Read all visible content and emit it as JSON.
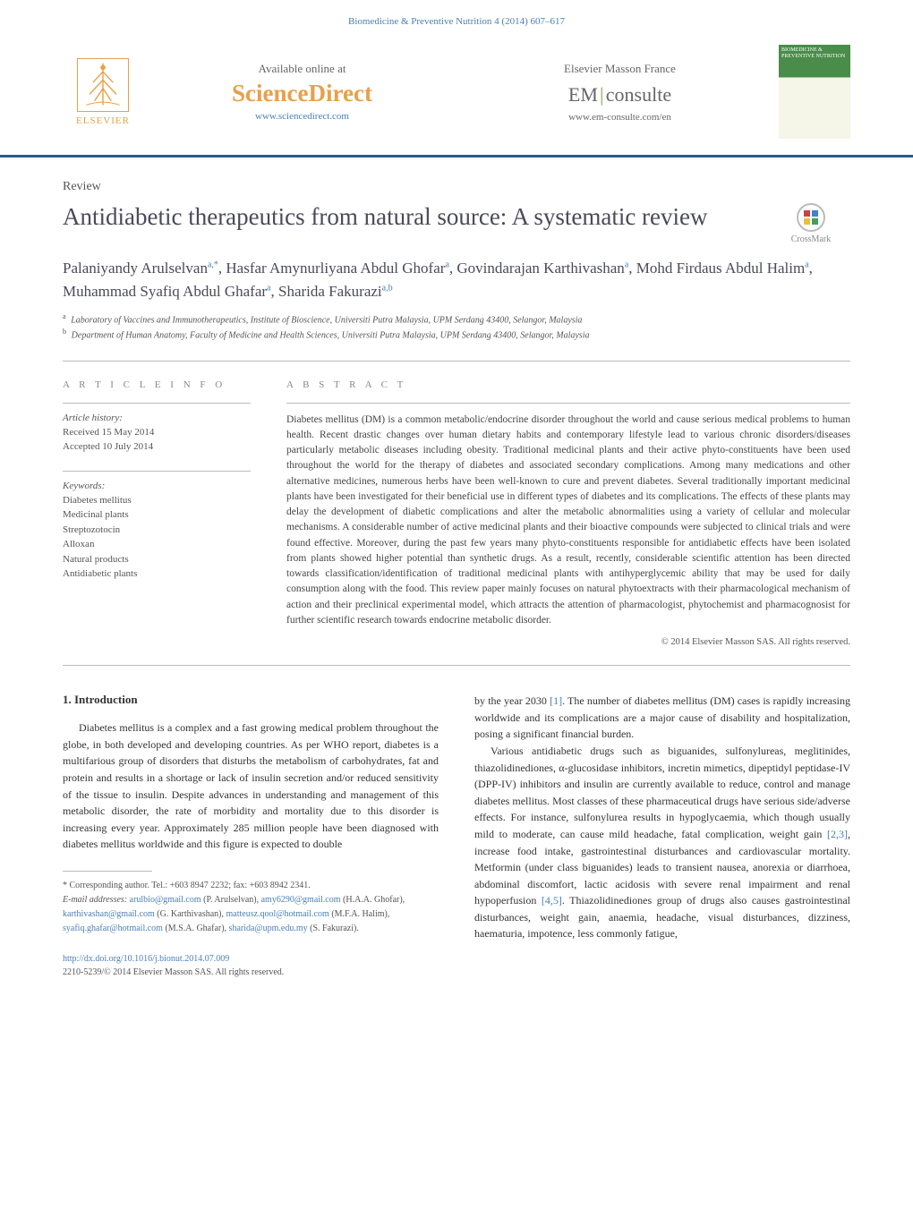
{
  "header": {
    "citation": "Biomedicine & Preventive Nutrition 4 (2014) 607–617",
    "elsevier_label": "ELSEVIER",
    "available_online": "Available online at",
    "sciencedirect": "ScienceDirect",
    "sd_url": "www.sciencedirect.com",
    "em_france": "Elsevier Masson France",
    "em_prefix": "EM",
    "em_suffix": "consulte",
    "em_url": "www.em-consulte.com/en",
    "journal_cover_title": "BIOMEDICINE & PREVENTIVE NUTRITION"
  },
  "article": {
    "review_label": "Review",
    "title": "Antidiabetic therapeutics from natural source: A systematic review",
    "crossmark_label": "CrossMark",
    "authors_html": "Palaniyandy Arulselvan<sup>a,*</sup>, Hasfar Amynurliyana Abdul Ghofar<sup>a</sup>, Govindarajan Karthivashan<sup>a</sup>, Mohd Firdaus Abdul Halim<sup>a</sup>, Muhammad Syafiq Abdul Ghafar<sup>a</sup>, Sharida Fakurazi<sup>a,b</sup>",
    "affiliations": [
      "Laboratory of Vaccines and Immunotherapeutics, Institute of Bioscience, Universiti Putra Malaysia, UPM Serdang 43400, Selangor, Malaysia",
      "Department of Human Anatomy, Faculty of Medicine and Health Sciences, Universiti Putra Malaysia, UPM Serdang 43400, Selangor, Malaysia"
    ]
  },
  "info": {
    "article_info_heading": "a r t i c l e   i n f o",
    "history_label": "Article history:",
    "received": "Received 15 May 2014",
    "accepted": "Accepted 10 July 2014",
    "keywords_label": "Keywords:",
    "keywords": [
      "Diabetes mellitus",
      "Medicinal plants",
      "Streptozotocin",
      "Alloxan",
      "Natural products",
      "Antidiabetic plants"
    ]
  },
  "abstract": {
    "heading": "a b s t r a c t",
    "text": "Diabetes mellitus (DM) is a common metabolic/endocrine disorder throughout the world and cause serious medical problems to human health. Recent drastic changes over human dietary habits and contemporary lifestyle lead to various chronic disorders/diseases particularly metabolic diseases including obesity. Traditional medicinal plants and their active phyto-constituents have been used throughout the world for the therapy of diabetes and associated secondary complications. Among many medications and other alternative medicines, numerous herbs have been well-known to cure and prevent diabetes. Several traditionally important medicinal plants have been investigated for their beneficial use in different types of diabetes and its complications. The effects of these plants may delay the development of diabetic complications and alter the metabolic abnormalities using a variety of cellular and molecular mechanisms. A considerable number of active medicinal plants and their bioactive compounds were subjected to clinical trials and were found effective. Moreover, during the past few years many phyto-constituents responsible for antidiabetic effects have been isolated from plants showed higher potential than synthetic drugs. As a result, recently, considerable scientific attention has been directed towards classification/identification of traditional medicinal plants with antihyperglycemic ability that may be used for daily consumption along with the food. This review paper mainly focuses on natural phytoextracts with their pharmacological mechanism of action and their preclinical experimental model, which attracts the attention of pharmacologist, phytochemist and pharmacognosist for further scientific research towards endocrine metabolic disorder.",
    "copyright": "© 2014 Elsevier Masson SAS. All rights reserved."
  },
  "body": {
    "intro_heading": "1. Introduction",
    "col1_p1": "Diabetes mellitus is a complex and a fast growing medical problem throughout the globe, in both developed and developing countries. As per WHO report, diabetes is a multifarious group of disorders that disturbs the metabolism of carbohydrates, fat and protein and results in a shortage or lack of insulin secretion and/or reduced sensitivity of the tissue to insulin. Despite advances in understanding and management of this metabolic disorder, the rate of morbidity and mortality due to this disorder is increasing every year. Approximately 285 million people have been diagnosed with diabetes mellitus worldwide and this figure is expected to double",
    "col2_p1_pre": "by the year 2030 ",
    "col2_p1_ref1": "[1]",
    "col2_p1_post": ". The number of diabetes mellitus (DM) cases is rapidly increasing worldwide and its complications are a major cause of disability and hospitalization, posing a significant financial burden.",
    "col2_p2_pre": "Various antidiabetic drugs such as biguanides, sulfonylureas, meglitinides, thiazolidinediones, α-glucosidase inhibitors, incretin mimetics, dipeptidyl peptidase-IV (DPP-IV) inhibitors and insulin are currently available to reduce, control and manage diabetes mellitus. Most classes of these pharmaceutical drugs have serious side/adverse effects. For instance, sulfonylurea results in hypoglycaemia, which though usually mild to moderate, can cause mild headache, fatal complication, weight gain ",
    "col2_p2_ref1": "[2,3]",
    "col2_p2_mid": ", increase food intake, gastrointestinal disturbances and cardiovascular mortality. Metformin (under class biguanides) leads to transient nausea, anorexia or diarrhoea, abdominal discomfort, lactic acidosis with severe renal impairment and renal hypoperfusion ",
    "col2_p2_ref2": "[4,5]",
    "col2_p2_post": ". Thiazolidinediones group of drugs also causes gastrointestinal disturbances, weight gain, anaemia, headache, visual disturbances, dizziness, haematuria, impotence, less commonly fatigue,"
  },
  "footnotes": {
    "corresponding": "* Corresponding author. Tel.: +603 8947 2232; fax: +603 8942 2341.",
    "email_label": "E-mail addresses:",
    "emails": [
      {
        "addr": "arulbio@gmail.com",
        "name": "(P. Arulselvan)"
      },
      {
        "addr": "amy6290@gmail.com",
        "name": "(H.A.A. Ghofar)"
      },
      {
        "addr": "karthivashan@gmail.com",
        "name": "(G. Karthivashan)"
      },
      {
        "addr": "matteusz.qool@hotmail.com",
        "name": "(M.F.A. Halim)"
      },
      {
        "addr": "syafiq.ghafar@hotmail.com",
        "name": "(M.S.A. Ghafar)"
      },
      {
        "addr": "sharida@upm.edu.my",
        "name": "(S. Fakurazi)"
      }
    ]
  },
  "doi": {
    "url": "http://dx.doi.org/10.1016/j.bionut.2014.07.009",
    "issn_copyright": "2210-5239/© 2014 Elsevier Masson SAS. All rights reserved."
  },
  "colors": {
    "link": "#4a7fb5",
    "brand_orange": "#e8a04a",
    "bar": "#2b5a8a",
    "cover_green": "#4a8c4a"
  }
}
